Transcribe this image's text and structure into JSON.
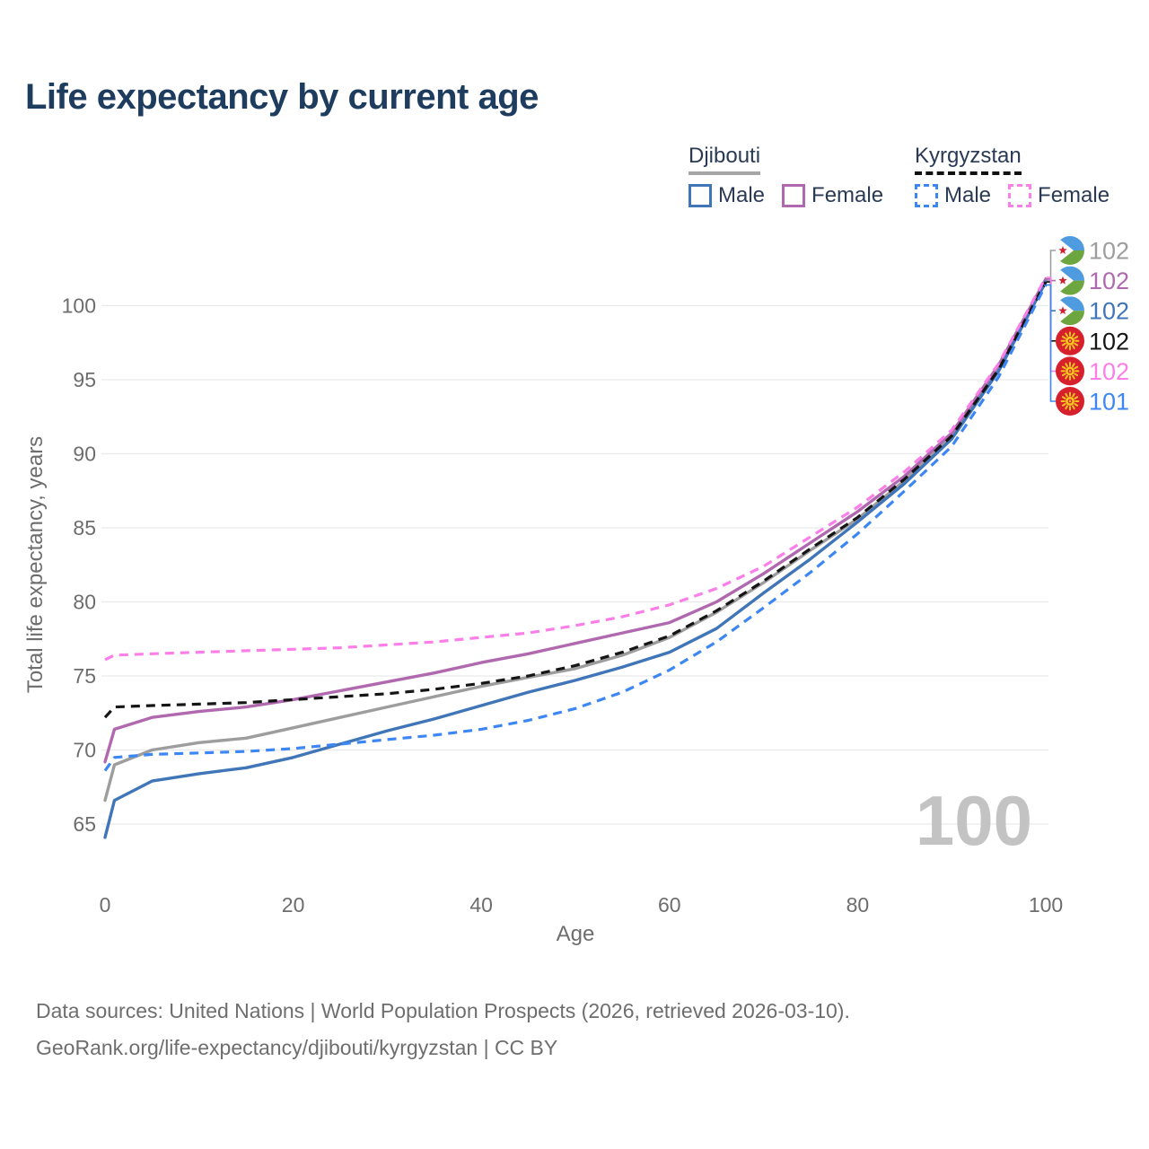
{
  "title": "Life expectancy by current age",
  "watermark": "100",
  "colors": {
    "title": "#1d3c5e",
    "legend_text": "#2a3a55",
    "axis_text": "#6d6d6d",
    "grid": "#e9e9e9",
    "watermark": "#c3c3c3",
    "footer_text": "#6e6e6e",
    "background": "#ffffff"
  },
  "legend": {
    "groups": [
      {
        "label": "Djibouti",
        "underline_style": "solid",
        "underline_color": "#a6a6a6",
        "items": [
          {
            "label": "Male",
            "color": "#4075b8",
            "dashed": false
          },
          {
            "label": "Female",
            "color": "#b069af",
            "dashed": false
          }
        ]
      },
      {
        "label": "Kyrgyzstan",
        "underline_style": "dashed",
        "underline_color": "#111111",
        "items": [
          {
            "label": "Male",
            "color": "#3d87f5",
            "dashed": true
          },
          {
            "label": "Female",
            "color": "#fc7ee8",
            "dashed": true
          }
        ]
      }
    ]
  },
  "chart_data": {
    "type": "line",
    "title": "Life expectancy by current age",
    "xlabel": "Age",
    "ylabel": "Total life expectancy, years",
    "xlim": [
      0,
      100
    ],
    "ylim": [
      63,
      103
    ],
    "xticks": [
      0,
      20,
      40,
      60,
      80,
      100
    ],
    "yticks": [
      65,
      70,
      75,
      80,
      85,
      90,
      95,
      100
    ],
    "grid": "horizontal",
    "legend_position": "top-right",
    "ages": [
      0,
      1,
      5,
      10,
      15,
      20,
      25,
      30,
      35,
      40,
      45,
      50,
      55,
      60,
      65,
      70,
      75,
      80,
      85,
      90,
      95,
      100
    ],
    "series": [
      {
        "name": "Djibouti Both sexes",
        "flag": "djibouti",
        "color": "#9d9d9d",
        "dashed": false,
        "end_label": "102",
        "values": [
          66.6,
          69.0,
          70.0,
          70.5,
          70.8,
          71.5,
          72.2,
          72.9,
          73.6,
          74.3,
          74.9,
          75.5,
          76.4,
          77.6,
          79.3,
          81.3,
          83.5,
          85.6,
          88.2,
          91.2,
          95.8,
          101.7
        ]
      },
      {
        "name": "Djibouti Female",
        "flag": "djibouti",
        "color": "#b069af",
        "dashed": false,
        "end_label": "102",
        "values": [
          69.2,
          71.4,
          72.2,
          72.6,
          72.9,
          73.4,
          74.0,
          74.6,
          75.2,
          75.9,
          76.5,
          77.2,
          77.9,
          78.6,
          80.0,
          81.9,
          84.0,
          86.1,
          88.5,
          91.4,
          96.0,
          101.8
        ]
      },
      {
        "name": "Djibouti Male",
        "flag": "djibouti",
        "color": "#4075b8",
        "dashed": false,
        "end_label": "102",
        "values": [
          64.1,
          66.6,
          67.9,
          68.4,
          68.8,
          69.5,
          70.4,
          71.3,
          72.1,
          73.0,
          73.9,
          74.7,
          75.6,
          76.6,
          78.2,
          80.6,
          82.9,
          85.4,
          88.0,
          91.0,
          95.6,
          101.6
        ]
      },
      {
        "name": "Kyrgyzstan Both sexes",
        "flag": "kyrgyzstan",
        "color": "#151515",
        "dashed": true,
        "end_label": "102",
        "values": [
          72.2,
          72.9,
          73.0,
          73.1,
          73.2,
          73.4,
          73.6,
          73.8,
          74.1,
          74.5,
          75.0,
          75.7,
          76.6,
          77.7,
          79.4,
          81.4,
          83.6,
          85.7,
          88.3,
          91.2,
          95.7,
          101.6
        ]
      },
      {
        "name": "Kyrgyzstan Female",
        "flag": "kyrgyzstan",
        "color": "#fc7ee8",
        "dashed": true,
        "end_label": "102",
        "values": [
          76.1,
          76.4,
          76.5,
          76.6,
          76.7,
          76.8,
          76.9,
          77.1,
          77.3,
          77.6,
          77.9,
          78.4,
          79.0,
          79.8,
          80.9,
          82.4,
          84.4,
          86.4,
          88.8,
          91.6,
          96.1,
          101.9
        ]
      },
      {
        "name": "Kyrgyzstan Male",
        "flag": "kyrgyzstan",
        "color": "#3d87f5",
        "dashed": true,
        "end_label": "101",
        "values": [
          68.6,
          69.5,
          69.7,
          69.8,
          69.9,
          70.1,
          70.4,
          70.7,
          71.0,
          71.4,
          72.0,
          72.8,
          73.9,
          75.4,
          77.3,
          79.6,
          82.0,
          84.6,
          87.5,
          90.5,
          95.2,
          101.4
        ]
      }
    ],
    "flag_colors": {
      "djibouti": {
        "top": "#4f9bdf",
        "bottom": "#6da63f",
        "triangle": "#ffffff",
        "star": "#cf2332"
      },
      "kyrgyzstan": {
        "field": "#d6212d",
        "sun": "#f7c71e"
      }
    }
  },
  "footer": {
    "line1": "Data sources: United Nations | World Population Prospects (2026, retrieved 2026-03-10).",
    "line2": "GeoRank.org/life-expectancy/djibouti/kyrgyzstan | CC BY"
  }
}
